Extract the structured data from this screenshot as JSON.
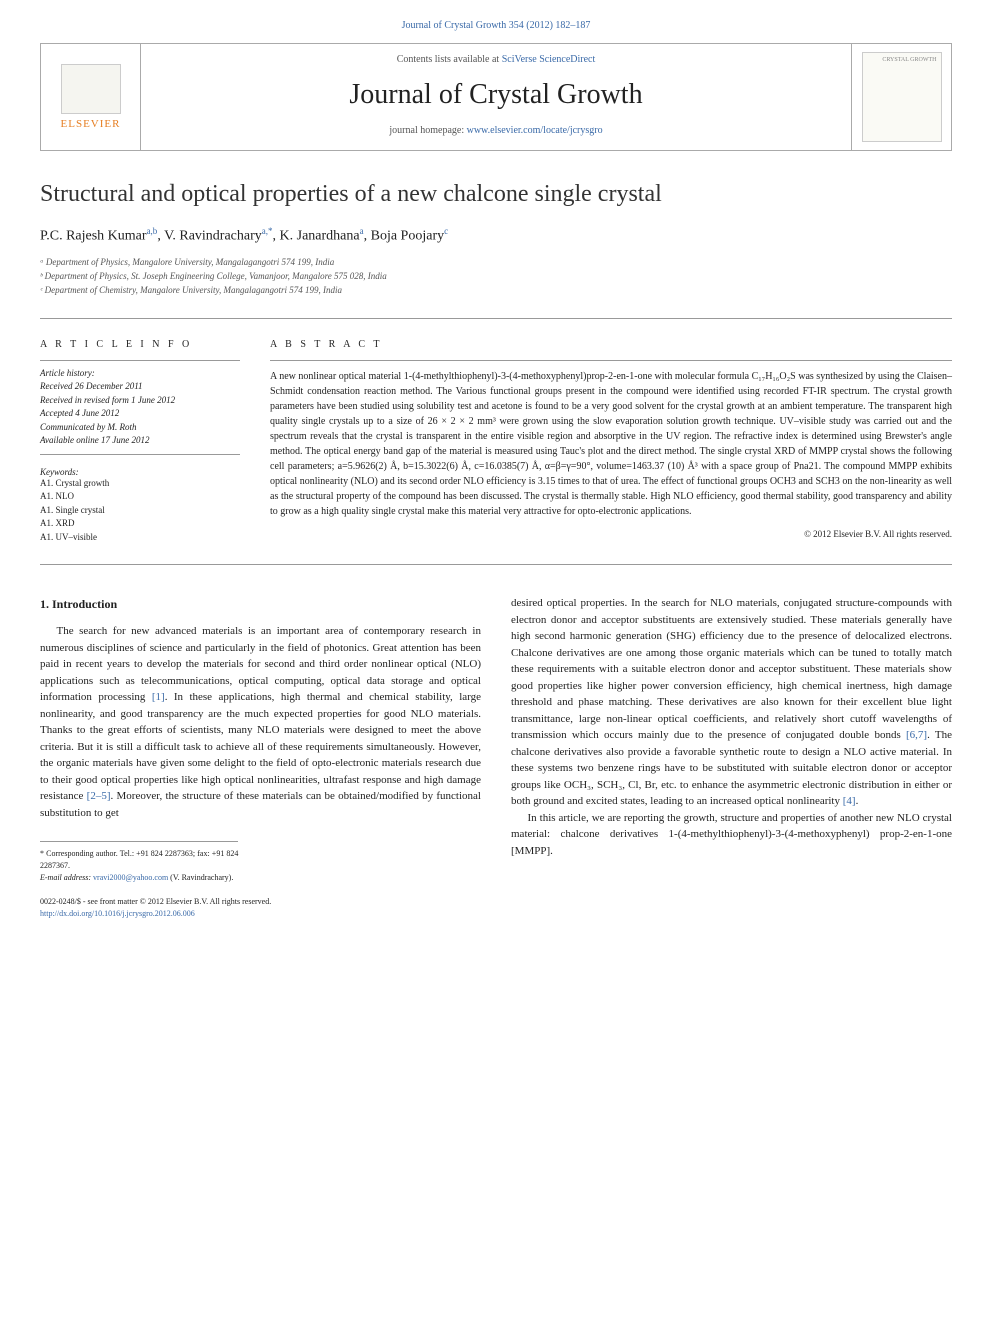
{
  "top_citation": "Journal of Crystal Growth 354 (2012) 182–187",
  "header": {
    "publisher": "ELSEVIER",
    "contents_prefix": "Contents lists available at ",
    "contents_link": "SciVerse ScienceDirect",
    "journal_name": "Journal of Crystal Growth",
    "homepage_prefix": "journal homepage: ",
    "homepage_link": "www.elsevier.com/locate/jcrysgro",
    "cover_text": "CRYSTAL GROWTH"
  },
  "article": {
    "title": "Structural and optical properties of a new chalcone single crystal",
    "authors_html": "P.C. Rajesh Kumar",
    "author1": "P.C. Rajesh Kumar",
    "author1_sup": "a,b",
    "author2": "V. Ravindrachary",
    "author2_sup": "a,*",
    "author3": "K. Janardhana",
    "author3_sup": "a",
    "author4": "Boja Poojary",
    "author4_sup": "c",
    "aff_a": "Department of Physics, Mangalore University, Mangalagangotri 574 199, India",
    "aff_b": "Department of Physics, St. Joseph Engineering College, Vamanjoor, Mangalore 575 028, India",
    "aff_c": "Department of Chemistry, Mangalore University, Mangalagangotri 574 199, India"
  },
  "info": {
    "heading": "A R T I C L E   I N F O",
    "history_label": "Article history:",
    "received": "Received 26 December 2011",
    "revised": "Received in revised form 1 June 2012",
    "accepted": "Accepted 4 June 2012",
    "communicated": "Communicated by M. Roth",
    "online": "Available online 17 June 2012",
    "kw_label": "Keywords:",
    "kw1": "A1. Crystal growth",
    "kw2": "A1. NLO",
    "kw3": "A1. Single crystal",
    "kw4": "A1. XRD",
    "kw5": "A1. UV–visible"
  },
  "abstract": {
    "heading": "A B S T R A C T",
    "text": "A new nonlinear optical material 1-(4-methylthiophenyl)-3-(4-methoxyphenyl)prop-2-en-1-one with molecular formula C₁₇H₁₆O₂S was synthesized by using the Claisen–Schmidt condensation reaction method. The Various functional groups present in the compound were identified using recorded FT-IR spectrum. The crystal growth parameters have been studied using solubility test and acetone is found to be a very good solvent for the crystal growth at an ambient temperature. The transparent high quality single crystals up to a size of 26 × 2 × 2 mm³ were grown using the slow evaporation solution growth technique. UV–visible study was carried out and the spectrum reveals that the crystal is transparent in the entire visible region and absorptive in the UV region. The refractive index is determined using Brewster's angle method. The optical energy band gap of the material is measured using Tauc's plot and the direct method. The single crystal XRD of MMPP crystal shows the following cell parameters; a=5.9626(2) Å, b=15.3022(6) Å, c=16.0385(7) Å, α=β=γ=90°, volume=1463.37 (10) Å³ with a space group of Pna21. The compound MMPP exhibits optical nonlinearity (NLO) and its second order NLO efficiency is 3.15 times to that of urea. The effect of functional groups OCH3 and SCH3 on the non-linearity as well as the structural property of the compound has been discussed. The crystal is thermally stable. High NLO efficiency, good thermal stability, good transparency and ability to grow as a high quality single crystal make this material very attractive for opto-electronic applications.",
    "copyright": "© 2012 Elsevier B.V. All rights reserved."
  },
  "body": {
    "section_title": "1. Introduction",
    "col1_p1a": "The search for new advanced materials is an important area of contemporary research in numerous disciplines of science and particularly in the field of photonics. Great attention has been paid in recent years to develop the materials for second and third order nonlinear optical (NLO) applications such as telecommunications, optical computing, optical data storage and optical information processing ",
    "ref1": "[1]",
    "col1_p1b": ". In these applications, high thermal and chemical stability, large nonlinearity, and good transparency are the much expected properties for good NLO materials. Thanks to the great efforts of scientists, many NLO materials were designed to meet the above criteria. But it is still a difficult task to achieve all of these requirements simultaneously. However, the organic materials have given some delight to the field of opto-electronic materials research due to their good optical properties like high optical nonlinearities, ultrafast response and high damage resistance ",
    "ref2": "[2–5]",
    "col1_p1c": ". Moreover, the structure of these materials can be obtained/modified by functional substitution to get",
    "col2_p1a": "desired optical properties. In the search for NLO materials, conjugated structure-compounds with electron donor and acceptor substituents are extensively studied. These materials generally have high second harmonic generation (SHG) efficiency due to the presence of delocalized electrons. Chalcone derivatives are one among those organic materials which can be tuned to totally match these requirements with a suitable electron donor and acceptor substituent. These materials show good properties like higher power conversion efficiency, high chemical inertness, high damage threshold and phase matching. These derivatives are also known for their excellent blue light transmittance, large non-linear optical coefficients, and relatively short cutoff wavelengths of transmission which occurs mainly due to the presence of conjugated double bonds ",
    "ref3": "[6,7]",
    "col2_p1b": ". The chalcone derivatives also provide a favorable synthetic route to design a NLO active material. In these systems two benzene rings have to be substituted with suitable electron donor or acceptor groups like OCH₃, SCH₃, Cl, Br, etc. to enhance the asymmetric electronic distribution in either or both ground and excited states, leading to an increased optical nonlinearity ",
    "ref4": "[4]",
    "col2_p1c": ".",
    "col2_p2": "In this article, we are reporting the growth, structure and properties of another new NLO crystal material: chalcone derivatives 1-(4-methylthiophenyl)-3-(4-methoxyphenyl) prop-2-en-1-one [MMPP]."
  },
  "footnote": {
    "corresponding": "* Corresponding author. Tel.: +91 824 2287363; fax: +91 824 2287367.",
    "email_label": "E-mail address: ",
    "email": "vravi2000@yahoo.com",
    "email_name": " (V. Ravindrachary)."
  },
  "doi": {
    "line1": "0022-0248/$ - see front matter © 2012 Elsevier B.V. All rights reserved.",
    "line2": "http://dx.doi.org/10.1016/j.jcrysgro.2012.06.006"
  },
  "colors": {
    "link": "#3a6aa8",
    "orange": "#e67e22",
    "border": "#999999",
    "text": "#222222"
  }
}
